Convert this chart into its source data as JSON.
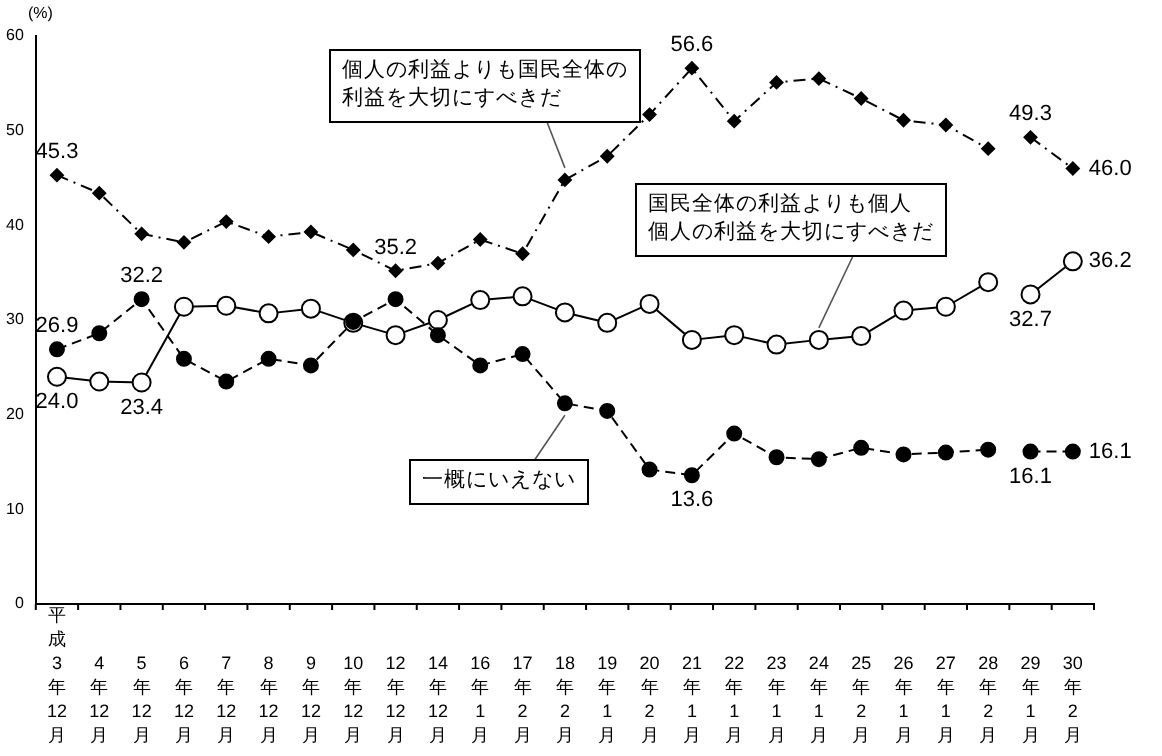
{
  "chart_data": {
    "type": "line",
    "ylabel": "(%)",
    "categories": [
      "平成3年12月",
      "4年12月",
      "5年12月",
      "6年12月",
      "7年12月",
      "8年12月",
      "9年12月",
      "10年12月",
      "12年12月",
      "14年12月",
      "16年1月",
      "17年2月",
      "18年2月",
      "19年1月",
      "20年2月",
      "21年1月",
      "22年1月",
      "23年1月",
      "24年1月",
      "25年2月",
      "26年1月",
      "27年1月",
      "28年2月",
      "29年1月",
      "30年2月"
    ],
    "ylim": [
      0,
      60
    ],
    "yticks": [
      0,
      10,
      20,
      30,
      40,
      50,
      60
    ],
    "grid": false,
    "legend": false,
    "series": [
      {
        "name": "個人の利益よりも国民全体の利益を大切にすべきだ",
        "color": "#000000",
        "marker": "diamond",
        "line_style": "dotted",
        "values": [
          45.3,
          43.4,
          39.1,
          38.2,
          40.4,
          38.8,
          39.3,
          37.4,
          35.2,
          36.0,
          38.5,
          37.0,
          44.8,
          47.3,
          51.7,
          56.6,
          51.0,
          55.1,
          55.5,
          53.4,
          51.1,
          50.6,
          48.1,
          null,
          null
        ],
        "value_labels": [
          "45.3",
          null,
          null,
          null,
          null,
          null,
          null,
          null,
          "35.2",
          null,
          null,
          null,
          null,
          null,
          null,
          "56.6",
          null,
          null,
          null,
          null,
          null,
          null,
          null,
          null,
          null
        ]
      },
      {
        "color": "#000000",
        "marker": "diamond",
        "line_style": "dotted",
        "values": [
          null,
          null,
          null,
          null,
          null,
          null,
          null,
          null,
          null,
          null,
          null,
          null,
          null,
          null,
          null,
          null,
          null,
          null,
          null,
          null,
          null,
          null,
          null,
          49.3,
          46.0
        ],
        "value_labels": [
          null,
          null,
          null,
          null,
          null,
          null,
          null,
          null,
          null,
          null,
          null,
          null,
          null,
          null,
          null,
          null,
          null,
          null,
          null,
          null,
          null,
          null,
          null,
          "49.3",
          "46.0"
        ]
      },
      {
        "name": "国民全体の利益よりも個人個人の利益を大切にすべきだ",
        "color": "#000000",
        "marker": "circle",
        "line_style": "solid",
        "values": [
          24.0,
          23.5,
          23.4,
          31.4,
          31.5,
          30.7,
          31.2,
          29.7,
          28.4,
          30.0,
          32.1,
          32.5,
          30.8,
          29.7,
          31.7,
          27.9,
          28.4,
          27.4,
          27.9,
          28.3,
          31.0,
          31.4,
          34.0,
          null,
          null
        ],
        "value_labels": [
          "24.0",
          null,
          "23.4",
          null,
          null,
          null,
          null,
          null,
          null,
          null,
          null,
          null,
          null,
          null,
          null,
          null,
          null,
          null,
          null,
          null,
          null,
          null,
          null,
          null,
          null
        ]
      },
      {
        "color": "#000000",
        "marker": "circle",
        "line_style": "solid",
        "values": [
          null,
          null,
          null,
          null,
          null,
          null,
          null,
          null,
          null,
          null,
          null,
          null,
          null,
          null,
          null,
          null,
          null,
          null,
          null,
          null,
          null,
          null,
          null,
          32.7,
          36.2
        ],
        "value_labels": [
          null,
          null,
          null,
          null,
          null,
          null,
          null,
          null,
          null,
          null,
          null,
          null,
          null,
          null,
          null,
          null,
          null,
          null,
          null,
          null,
          null,
          null,
          null,
          "32.7",
          "36.2"
        ]
      },
      {
        "name": "一概にいえない",
        "color": "#000000",
        "marker": "circle",
        "line_style": "dashed",
        "values": [
          26.9,
          28.6,
          32.2,
          25.9,
          23.5,
          25.9,
          25.2,
          29.8,
          32.2,
          28.4,
          25.2,
          26.4,
          21.2,
          20.4,
          14.2,
          13.6,
          18.0,
          15.5,
          15.3,
          16.5,
          15.8,
          16.0,
          16.3,
          null,
          null
        ],
        "value_labels": [
          "26.9",
          null,
          "32.2",
          null,
          null,
          null,
          null,
          null,
          null,
          null,
          null,
          null,
          null,
          null,
          null,
          "13.6",
          null,
          null,
          null,
          null,
          null,
          null,
          null,
          null,
          null
        ]
      },
      {
        "color": "#000000",
        "marker": "circle",
        "line_style": "dashed",
        "values": [
          null,
          null,
          null,
          null,
          null,
          null,
          null,
          null,
          null,
          null,
          null,
          null,
          null,
          null,
          null,
          null,
          null,
          null,
          null,
          null,
          null,
          null,
          null,
          16.1,
          16.1
        ],
        "value_labels": [
          null,
          null,
          null,
          null,
          null,
          null,
          null,
          null,
          null,
          null,
          null,
          null,
          null,
          null,
          null,
          null,
          null,
          null,
          null,
          null,
          null,
          null,
          null,
          "16.1",
          "16.1"
        ]
      }
    ]
  }
}
